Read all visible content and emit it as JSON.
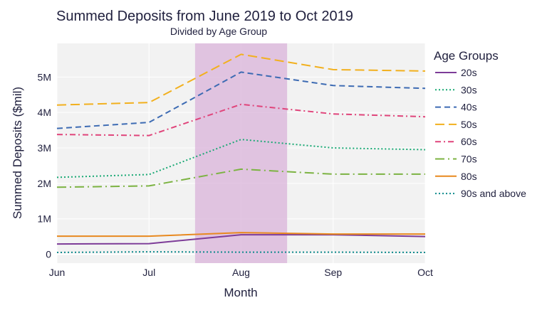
{
  "chart_data": {
    "type": "line",
    "title": "Summed Deposits from June 2019 to Oct 2019",
    "subtitle": "Divided by Age Group",
    "xlabel": "Month",
    "ylabel": "Summed Deposits ($mil)",
    "categories": [
      "Jun",
      "Jul",
      "Aug",
      "Sep",
      "Oct"
    ],
    "ylim": [
      -0.25,
      5.95
    ],
    "yticks": [
      0,
      1,
      2,
      3,
      4,
      5
    ],
    "ytick_labels": [
      "0",
      "1M",
      "2M",
      "3M",
      "4M",
      "5M"
    ],
    "highlight": {
      "from": 1.5,
      "to": 2.5,
      "color": "#d9b3d9"
    },
    "plot_bg": "#f2f2f2",
    "grid": true,
    "legend": {
      "title": "Age Groups",
      "position": "right"
    },
    "series": [
      {
        "name": "20s",
        "values": [
          0.29,
          0.3,
          0.55,
          0.55,
          0.5
        ],
        "color": "#7d3c98",
        "dash": "solid"
      },
      {
        "name": "30s",
        "values": [
          2.17,
          2.25,
          3.24,
          3.0,
          2.95
        ],
        "color": "#19a974",
        "dash": "dot"
      },
      {
        "name": "40s",
        "values": [
          3.55,
          3.72,
          5.14,
          4.76,
          4.68
        ],
        "color": "#3d6bb3",
        "dash": "dash"
      },
      {
        "name": "50s",
        "values": [
          4.21,
          4.28,
          5.64,
          5.21,
          5.17
        ],
        "color": "#f2b01e",
        "dash": "longdash"
      },
      {
        "name": "60s",
        "values": [
          3.38,
          3.35,
          4.23,
          3.96,
          3.88
        ],
        "color": "#e0457b",
        "dash": "dashdot"
      },
      {
        "name": "70s",
        "values": [
          1.89,
          1.93,
          2.4,
          2.26,
          2.26
        ],
        "color": "#7cb342",
        "dash": "longdashdot"
      },
      {
        "name": "80s",
        "values": [
          0.51,
          0.51,
          0.61,
          0.57,
          0.57
        ],
        "color": "#e8891f",
        "dash": "solid"
      },
      {
        "name": "90s and above",
        "values": [
          0.05,
          0.07,
          0.06,
          0.06,
          0.05
        ],
        "color": "#0f8b8d",
        "dash": "dot"
      }
    ]
  }
}
